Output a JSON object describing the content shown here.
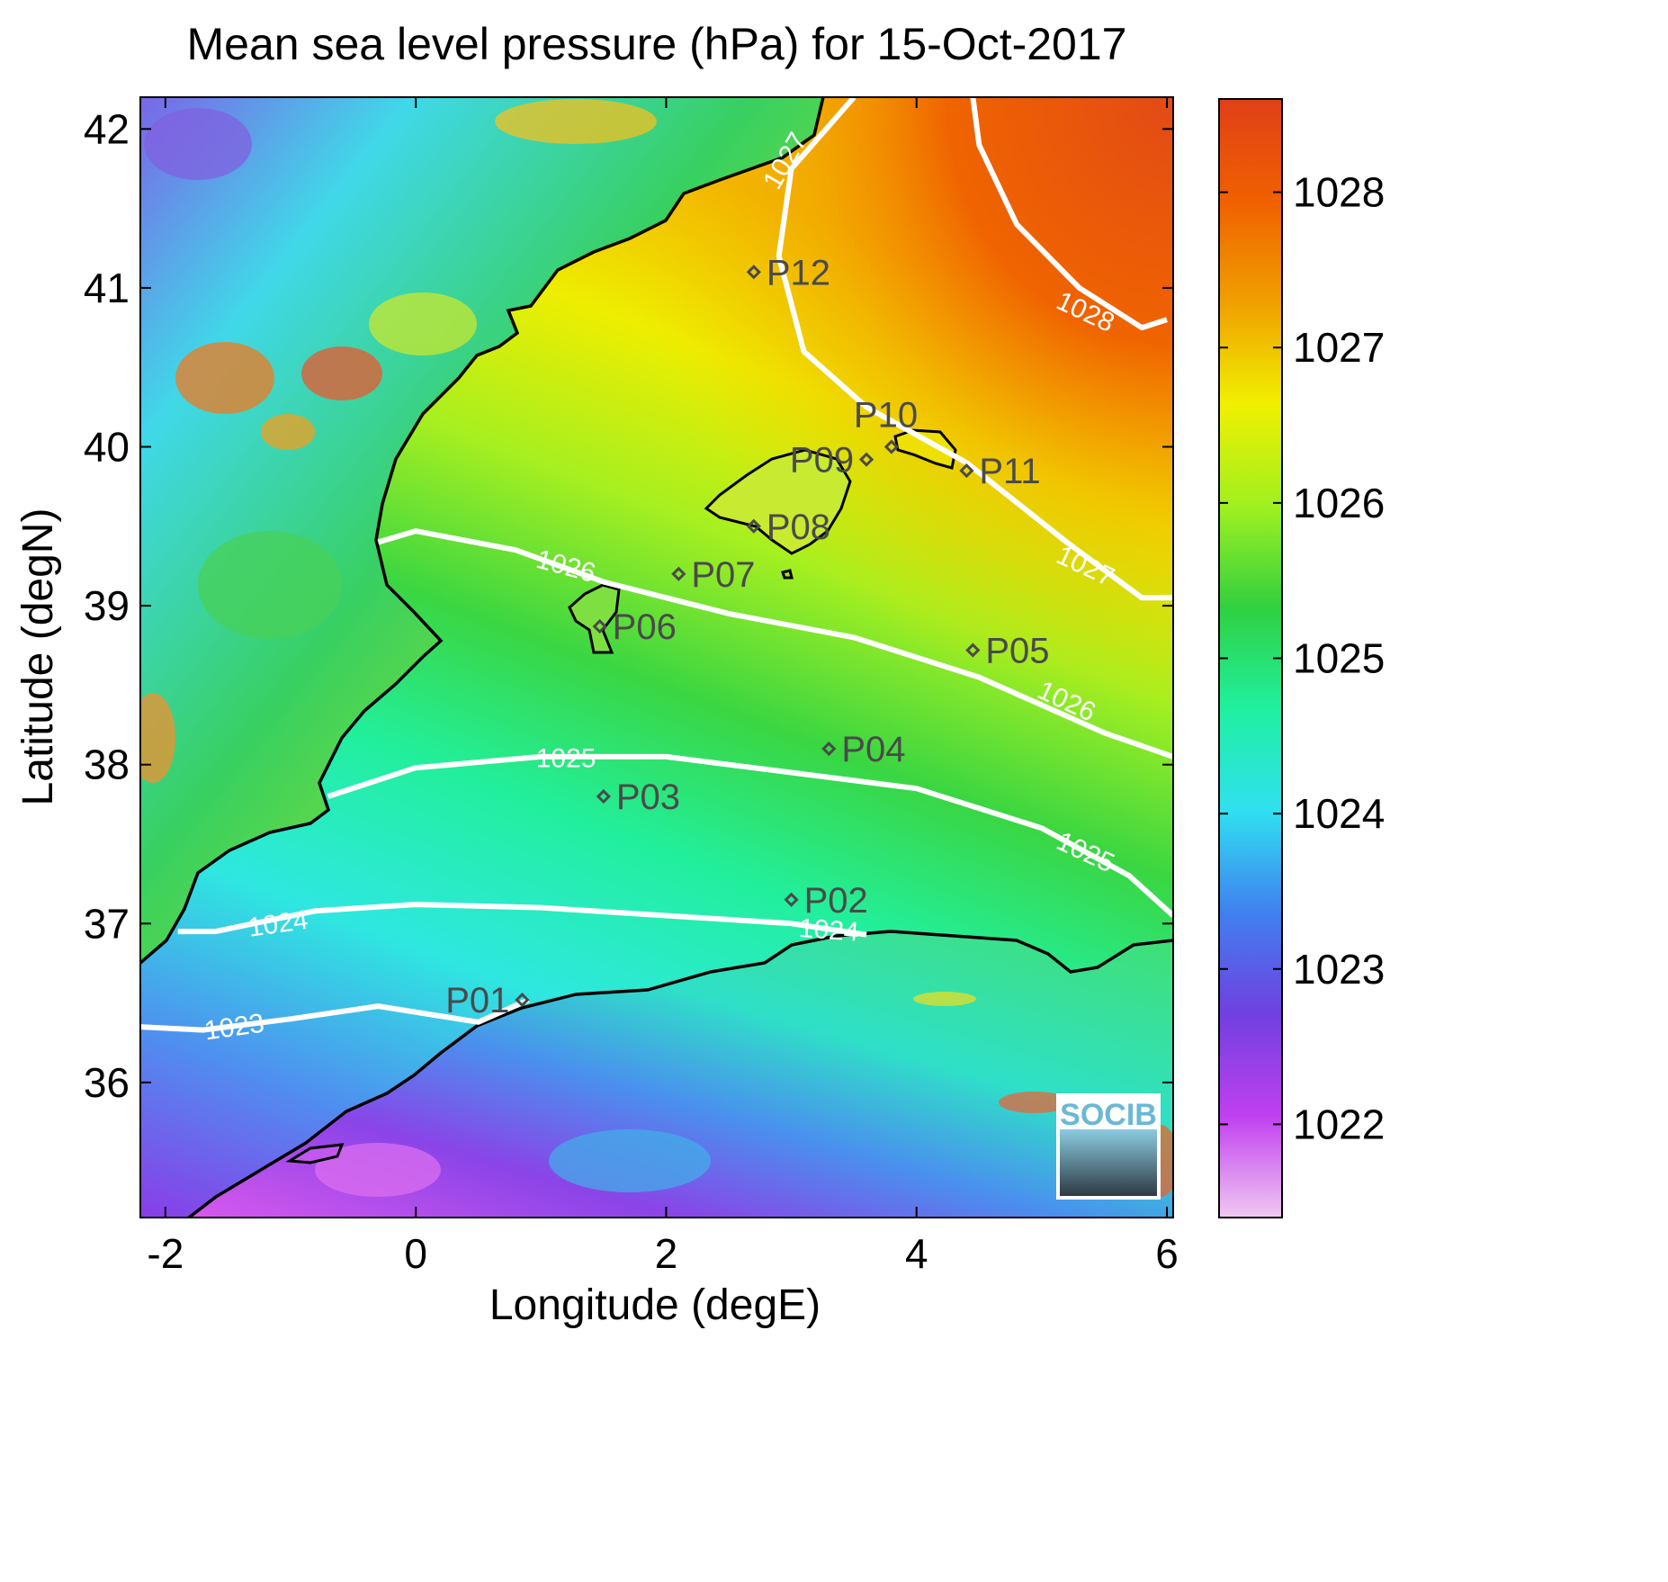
{
  "title": "Mean sea level pressure (hPa) for 15-Oct-2017",
  "xlabel": "Longitude (degE)",
  "ylabel": "Latitude (degN)",
  "xticks": [
    {
      "value": -2,
      "label": "-2"
    },
    {
      "value": 0,
      "label": "0"
    },
    {
      "value": 2,
      "label": "2"
    },
    {
      "value": 4,
      "label": "4"
    },
    {
      "value": 6,
      "label": "6"
    }
  ],
  "yticks": [
    {
      "value": 36,
      "label": "36"
    },
    {
      "value": 37,
      "label": "37"
    },
    {
      "value": 38,
      "label": "38"
    },
    {
      "value": 39,
      "label": "39"
    },
    {
      "value": 40,
      "label": "40"
    },
    {
      "value": 41,
      "label": "41"
    },
    {
      "value": 42,
      "label": "42"
    }
  ],
  "colorbar": {
    "min": 1021.4,
    "max": 1028.6,
    "ticks": [
      {
        "value": 1022,
        "label": "1022"
      },
      {
        "value": 1023,
        "label": "1023"
      },
      {
        "value": 1024,
        "label": "1024"
      },
      {
        "value": 1025,
        "label": "1025"
      },
      {
        "value": 1026,
        "label": "1026"
      },
      {
        "value": 1027,
        "label": "1027"
      },
      {
        "value": 1028,
        "label": "1028"
      }
    ],
    "colors": [
      "#f0c8f0",
      "#c040f0",
      "#7040e0",
      "#4080f0",
      "#30e0f0",
      "#20f0a0",
      "#30d040",
      "#a0f020",
      "#f0f000",
      "#f0a000",
      "#f06000",
      "#e04018"
    ]
  },
  "logo_text": "SOCIB",
  "chart_data": {
    "type": "heatmap",
    "title": "Mean sea level pressure (hPa) for 15-Oct-2017",
    "xlabel": "Longitude (degE)",
    "ylabel": "Latitude (degN)",
    "xlim": [
      -2.2,
      6.05
    ],
    "ylim": [
      35.15,
      42.2
    ],
    "clim": [
      1021.4,
      1028.6
    ],
    "contours": [
      {
        "level": 1023,
        "label": "1023",
        "points": [
          [
            -2.2,
            36.35
          ],
          [
            -1.7,
            36.33
          ],
          [
            -1.0,
            36.4
          ],
          [
            -0.3,
            36.48
          ],
          [
            0.5,
            36.38
          ],
          [
            0.9,
            36.52
          ]
        ],
        "labels_at": [
          [
            -1.45,
            36.35,
            -8
          ]
        ]
      },
      {
        "level": 1024,
        "label": "1024",
        "points": [
          [
            -1.9,
            36.95
          ],
          [
            -1.6,
            36.95
          ],
          [
            -0.8,
            37.08
          ],
          [
            0.0,
            37.12
          ],
          [
            1.0,
            37.1
          ],
          [
            2.0,
            37.05
          ],
          [
            3.0,
            37.0
          ],
          [
            3.6,
            36.93
          ]
        ],
        "labels_at": [
          [
            -1.1,
            37.0,
            -8
          ],
          [
            3.3,
            36.96,
            4
          ]
        ]
      },
      {
        "level": 1025,
        "label": "1025",
        "points": [
          [
            -0.7,
            37.8
          ],
          [
            0.0,
            37.98
          ],
          [
            1.0,
            38.05
          ],
          [
            2.0,
            38.05
          ],
          [
            3.0,
            37.95
          ],
          [
            4.0,
            37.85
          ],
          [
            5.0,
            37.6
          ],
          [
            5.7,
            37.3
          ],
          [
            6.05,
            37.05
          ]
        ],
        "labels_at": [
          [
            1.2,
            38.04,
            0
          ],
          [
            5.35,
            37.45,
            25
          ]
        ]
      },
      {
        "level": 1026,
        "label": "1026",
        "points": [
          [
            -0.3,
            39.4
          ],
          [
            0.0,
            39.47
          ],
          [
            0.8,
            39.35
          ],
          [
            1.5,
            39.15
          ],
          [
            2.5,
            38.95
          ],
          [
            3.5,
            38.8
          ],
          [
            4.5,
            38.55
          ],
          [
            5.5,
            38.2
          ],
          [
            6.05,
            38.05
          ]
        ],
        "labels_at": [
          [
            1.2,
            39.25,
            15
          ],
          [
            5.2,
            38.4,
            25
          ]
        ]
      },
      {
        "level": 1027,
        "label": "1027",
        "points": [
          [
            3.5,
            42.2
          ],
          [
            3.0,
            41.75
          ],
          [
            2.9,
            41.2
          ],
          [
            3.1,
            40.6
          ],
          [
            3.6,
            40.25
          ],
          [
            4.4,
            39.9
          ],
          [
            5.2,
            39.4
          ],
          [
            5.8,
            39.05
          ],
          [
            6.05,
            39.05
          ]
        ],
        "labels_at": [
          [
            2.95,
            41.8,
            -60
          ],
          [
            5.35,
            39.25,
            25
          ]
        ]
      },
      {
        "level": 1028,
        "label": "1028",
        "points": [
          [
            4.45,
            42.2
          ],
          [
            4.5,
            41.9
          ],
          [
            4.8,
            41.4
          ],
          [
            5.3,
            41.0
          ],
          [
            5.8,
            40.75
          ],
          [
            6.0,
            40.8
          ]
        ],
        "labels_at": [
          [
            5.35,
            40.85,
            25
          ]
        ]
      }
    ],
    "stations": [
      {
        "name": "P01",
        "lon": 0.85,
        "lat": 36.52,
        "label_side": "left"
      },
      {
        "name": "P02",
        "lon": 3.0,
        "lat": 37.15,
        "label_side": "right"
      },
      {
        "name": "P03",
        "lon": 1.5,
        "lat": 37.8,
        "label_side": "right"
      },
      {
        "name": "P04",
        "lon": 3.3,
        "lat": 38.1,
        "label_side": "right"
      },
      {
        "name": "P05",
        "lon": 4.45,
        "lat": 38.72,
        "label_side": "right"
      },
      {
        "name": "P06",
        "lon": 1.47,
        "lat": 38.87,
        "label_side": "right"
      },
      {
        "name": "P07",
        "lon": 2.1,
        "lat": 39.2,
        "label_side": "right"
      },
      {
        "name": "P08",
        "lon": 2.7,
        "lat": 39.5,
        "label_side": "right"
      },
      {
        "name": "P09",
        "lon": 3.6,
        "lat": 39.92,
        "label_side": "left"
      },
      {
        "name": "P10",
        "lon": 3.8,
        "lat": 40.0,
        "label_side": "top"
      },
      {
        "name": "P11",
        "lon": 4.4,
        "lat": 39.85,
        "label_side": "right"
      },
      {
        "name": "P12",
        "lon": 2.7,
        "lat": 41.1,
        "label_side": "right"
      }
    ]
  }
}
